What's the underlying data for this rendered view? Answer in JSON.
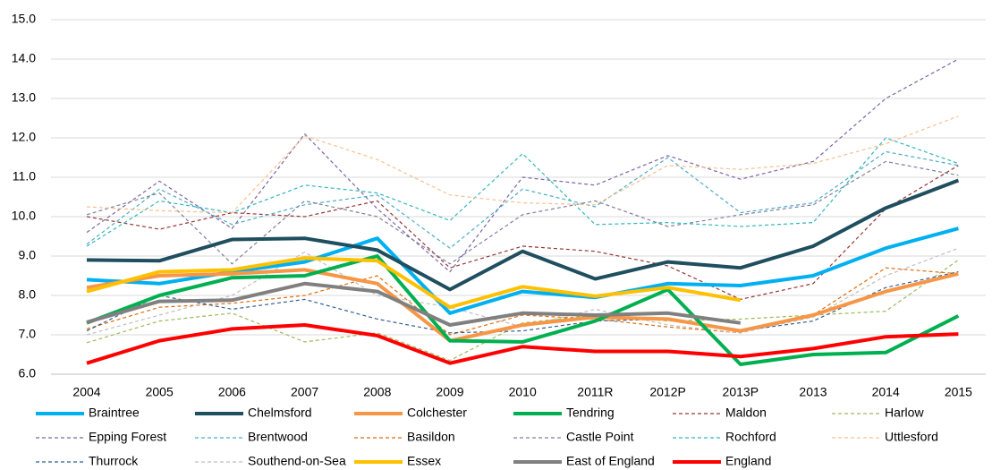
{
  "chart_data": {
    "type": "line",
    "categories": [
      "2004",
      "2005",
      "2006",
      "2007",
      "2008",
      "2009",
      "2010",
      "2011R",
      "2012P",
      "2013P",
      "2013",
      "2014",
      "2015"
    ],
    "ylim": [
      6,
      15
    ],
    "yticks": [
      {
        "value": 6,
        "label": "6.0"
      },
      {
        "value": 7,
        "label": "7.0"
      },
      {
        "value": 8,
        "label": "8.0"
      },
      {
        "value": 9,
        "label": "9.0"
      },
      {
        "value": 10,
        "label": "10.0"
      },
      {
        "value": 11,
        "label": "11.0"
      },
      {
        "value": 12,
        "label": "12.0"
      },
      {
        "value": 13,
        "label": "13.0"
      },
      {
        "value": 14,
        "label": "14.0"
      },
      {
        "value": 15,
        "label": "15.0"
      }
    ],
    "grid": true,
    "series": [
      {
        "name": "Braintree",
        "color": "#00b0f0",
        "dashed": false,
        "values": [
          8.4,
          8.3,
          8.6,
          8.85,
          9.45,
          7.55,
          8.1,
          7.95,
          8.3,
          8.25,
          8.5,
          9.2,
          9.7
        ]
      },
      {
        "name": "Chelmsford",
        "color": "#1f4e5f",
        "dashed": false,
        "values": [
          8.9,
          8.88,
          9.42,
          9.45,
          9.15,
          8.15,
          9.12,
          8.42,
          8.85,
          8.7,
          9.25,
          10.22,
          10.92
        ]
      },
      {
        "name": "Colchester",
        "color": "#f79646",
        "dashed": false,
        "values": [
          8.2,
          8.5,
          8.55,
          8.65,
          8.3,
          6.85,
          7.25,
          7.45,
          7.4,
          7.1,
          7.5,
          8.1,
          8.55
        ]
      },
      {
        "name": "Tendring",
        "color": "#00b050",
        "dashed": false,
        "values": [
          7.3,
          8.0,
          8.45,
          8.5,
          9.0,
          6.85,
          6.82,
          7.35,
          8.15,
          6.25,
          6.5,
          6.55,
          7.48
        ]
      },
      {
        "name": "Maldon",
        "color": "#953735",
        "dashed": true,
        "values": [
          10.0,
          9.68,
          10.1,
          10.0,
          10.4,
          8.7,
          9.25,
          9.12,
          8.75,
          7.9,
          8.3,
          10.2,
          11.3
        ]
      },
      {
        "name": "Harlow",
        "color": "#9bbb59",
        "dashed": true,
        "values": [
          6.8,
          7.35,
          7.55,
          6.82,
          7.05,
          6.35,
          7.3,
          7.5,
          7.35,
          7.4,
          7.5,
          7.6,
          8.9
        ]
      },
      {
        "name": "Epping Forest",
        "color": "#8064a2",
        "dashed": true,
        "values": [
          9.6,
          10.9,
          9.7,
          12.1,
          10.2,
          8.6,
          11.0,
          10.8,
          11.55,
          10.95,
          11.4,
          13.0,
          14.0
        ]
      },
      {
        "name": "Brentwood",
        "color": "#4bacc6",
        "dashed": true,
        "values": [
          9.3,
          10.7,
          9.8,
          10.3,
          10.55,
          9.2,
          10.7,
          10.25,
          11.5,
          10.1,
          10.35,
          11.65,
          11.3
        ]
      },
      {
        "name": "Basildon",
        "color": "#e46c0a",
        "dashed": true,
        "values": [
          7.15,
          7.7,
          7.8,
          8.0,
          8.5,
          7.0,
          7.5,
          7.4,
          7.2,
          7.05,
          7.5,
          8.7,
          8.55
        ]
      },
      {
        "name": "Castle Point",
        "color": "#7f7f9f",
        "dashed": true,
        "values": [
          10.05,
          10.6,
          8.8,
          10.4,
          10.0,
          8.8,
          10.05,
          10.4,
          9.75,
          10.05,
          10.3,
          11.4,
          11.05
        ]
      },
      {
        "name": "Rochford",
        "color": "#31b7bc",
        "dashed": true,
        "values": [
          9.25,
          10.4,
          10.1,
          10.8,
          10.6,
          9.9,
          11.6,
          9.8,
          9.85,
          9.75,
          9.85,
          12.0,
          11.35
        ]
      },
      {
        "name": "Uttlesford",
        "color": "#fac090",
        "dashed": true,
        "values": [
          10.25,
          10.15,
          10.1,
          12.05,
          11.45,
          10.55,
          10.35,
          10.3,
          11.3,
          11.2,
          11.35,
          11.85,
          12.55
        ]
      },
      {
        "name": "Thurrock",
        "color": "#366092",
        "dashed": true,
        "values": [
          7.1,
          8.0,
          7.65,
          7.9,
          7.4,
          7.05,
          7.1,
          7.35,
          7.4,
          7.1,
          7.35,
          8.2,
          8.6
        ]
      },
      {
        "name": "Southend-on-Sea",
        "color": "#bfbfbf",
        "dashed": true,
        "values": [
          7.0,
          7.5,
          8.0,
          9.1,
          8.0,
          7.7,
          7.2,
          7.65,
          7.25,
          7.05,
          7.45,
          8.5,
          9.2
        ]
      },
      {
        "name": "Essex",
        "color": "#ffc000",
        "dashed": false,
        "values": [
          8.1,
          8.6,
          8.65,
          8.95,
          8.88,
          7.7,
          8.22,
          7.98,
          8.2,
          7.88,
          null,
          null,
          null
        ]
      },
      {
        "name": "East of England",
        "color": "#808080",
        "dashed": false,
        "values": [
          7.32,
          7.85,
          7.88,
          8.3,
          8.1,
          7.25,
          7.55,
          7.5,
          7.55,
          7.3,
          null,
          null,
          null
        ]
      },
      {
        "name": "England",
        "color": "#ff0000",
        "dashed": false,
        "values": [
          6.28,
          6.85,
          7.15,
          7.25,
          6.98,
          6.28,
          6.7,
          6.58,
          6.58,
          6.45,
          6.65,
          6.95,
          7.02
        ]
      }
    ]
  }
}
